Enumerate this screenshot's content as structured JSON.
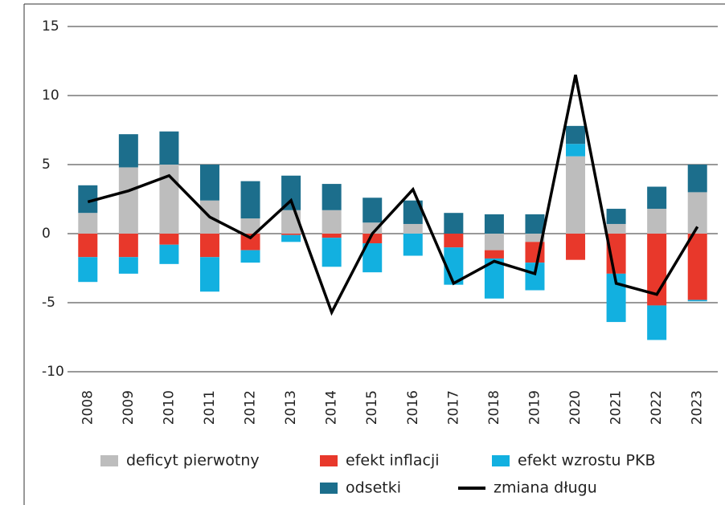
{
  "chart_data": {
    "type": "bar",
    "stacked": true,
    "categories": [
      "2008",
      "2009",
      "2010",
      "2011",
      "2012",
      "2013",
      "2014",
      "2015",
      "2016",
      "2017",
      "2018",
      "2019",
      "2020",
      "2021",
      "2022",
      "2023"
    ],
    "series": [
      {
        "name": "deficyt pierwotny",
        "color": "#bdbdbd",
        "values": [
          1.5,
          4.8,
          5.0,
          2.4,
          1.1,
          1.7,
          1.7,
          0.8,
          0.7,
          0,
          -1.2,
          -0.6,
          5.6,
          0.7,
          1.8,
          3.0
        ]
      },
      {
        "name": "efekt inflacji",
        "color": "#e8382b",
        "values": [
          -1.7,
          -1.7,
          -0.8,
          -1.7,
          -1.2,
          -0.1,
          -0.3,
          -0.7,
          0,
          -1.0,
          -0.6,
          -1.5,
          -1.9,
          -2.9,
          -5.2,
          -4.8
        ]
      },
      {
        "name": "efekt wzrostu PKB",
        "color": "#12b0e0",
        "values": [
          -1.8,
          -1.2,
          -1.4,
          -2.5,
          -0.9,
          -0.5,
          -2.1,
          -2.1,
          -1.6,
          -2.7,
          -2.9,
          -2.0,
          0.9,
          -3.5,
          -2.5,
          -0.1
        ]
      },
      {
        "name": "odsetki",
        "color": "#1c6e8c",
        "values": [
          2.0,
          2.4,
          2.4,
          2.6,
          2.7,
          2.5,
          1.9,
          1.8,
          1.7,
          1.5,
          1.4,
          1.4,
          1.3,
          1.1,
          1.6,
          2.0
        ]
      },
      {
        "name": "zmiana długu",
        "type": "line",
        "color": "#000000",
        "values": [
          2.3,
          3.1,
          4.2,
          1.2,
          -0.3,
          2.4,
          -5.7,
          0,
          3.2,
          -3.6,
          -2.0,
          -2.9,
          11.5,
          -3.6,
          -4.4,
          0.5
        ]
      }
    ],
    "ylim": [
      -10,
      15
    ],
    "yticks": [
      -10,
      -5,
      0,
      5,
      10,
      15
    ],
    "grid": true
  }
}
